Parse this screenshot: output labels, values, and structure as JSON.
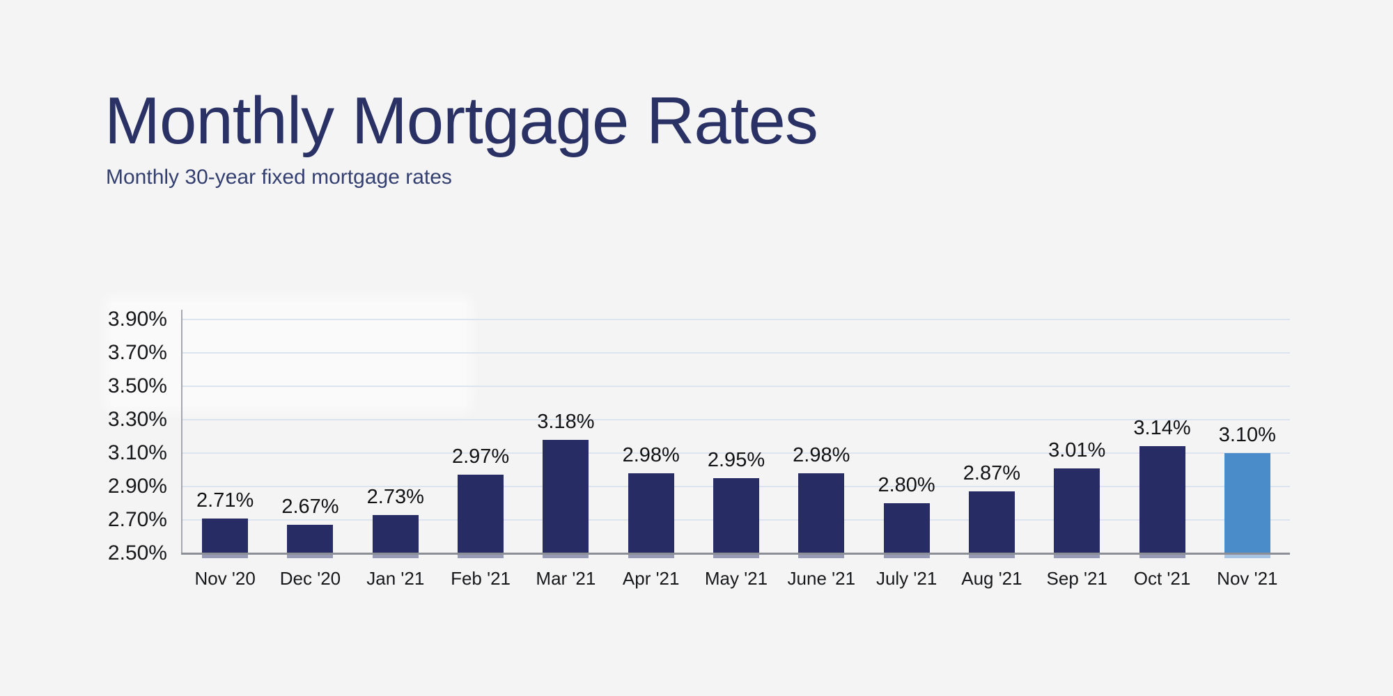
{
  "header": {
    "title": "Monthly Mortgage Rates",
    "subtitle": "Monthly 30-year fixed mortgage rates"
  },
  "chart_data": {
    "type": "bar",
    "title": "Monthly Mortgage Rates",
    "subtitle": "Monthly 30-year fixed mortgage rates",
    "categories": [
      "Nov '20",
      "Dec '20",
      "Jan '21",
      "Feb '21",
      "Mar '21",
      "Apr '21",
      "May '21",
      "June '21",
      "July '21",
      "Aug '21",
      "Sep '21",
      "Oct '21",
      "Nov '21"
    ],
    "values": [
      2.71,
      2.67,
      2.73,
      2.97,
      3.18,
      2.98,
      2.95,
      2.98,
      2.8,
      2.87,
      3.01,
      3.14,
      3.1
    ],
    "value_labels": [
      "2.71%",
      "2.67%",
      "2.73%",
      "2.97%",
      "3.18%",
      "2.98%",
      "2.95%",
      "2.98%",
      "2.80%",
      "2.87%",
      "3.01%",
      "3.14%",
      "3.10%"
    ],
    "yticks": [
      {
        "value": 2.5,
        "label": "2.50%"
      },
      {
        "value": 2.7,
        "label": "2.70%"
      },
      {
        "value": 2.9,
        "label": "2.90%"
      },
      {
        "value": 3.1,
        "label": "3.10%"
      },
      {
        "value": 3.3,
        "label": "3.30%"
      },
      {
        "value": 3.5,
        "label": "3.50%"
      },
      {
        "value": 3.7,
        "label": "3.70%"
      },
      {
        "value": 3.9,
        "label": "3.90%"
      }
    ],
    "ylim": [
      2.5,
      3.9
    ],
    "xlabel": "",
    "ylabel": "",
    "grid": true,
    "legend": "none",
    "highlight_index": 12,
    "colors": {
      "bar": "#272d64",
      "highlight": "#4a8bca",
      "grid": "#dde4f0",
      "axis": "#8c8f96",
      "label": "#17181a",
      "title": "#2a3164",
      "background": "#f4f4f5"
    }
  }
}
